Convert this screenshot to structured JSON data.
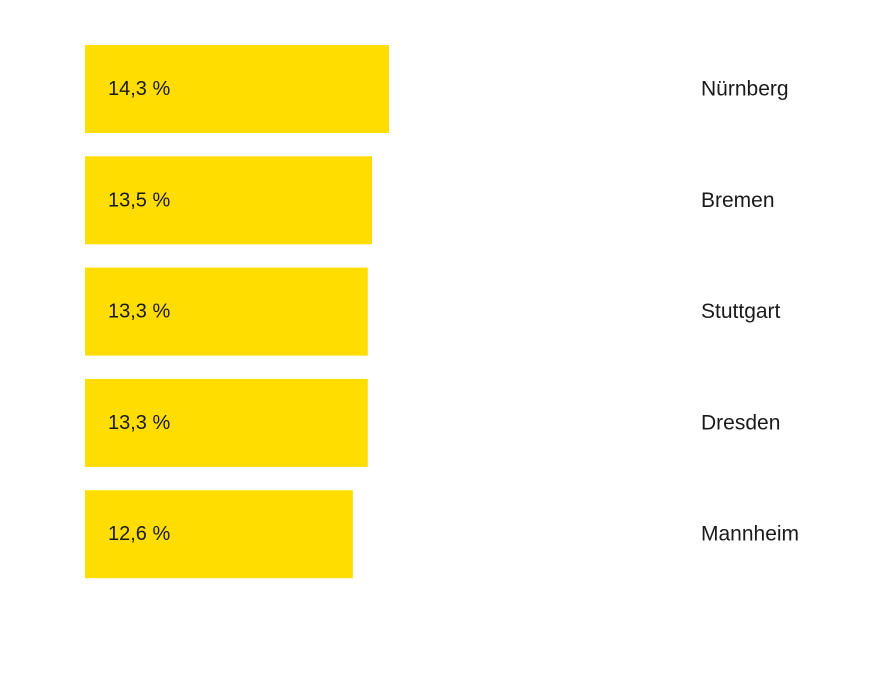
{
  "chart_data": {
    "type": "bar",
    "orientation": "horizontal",
    "categories": [
      "Nürnberg",
      "Bremen",
      "Stuttgart",
      "Dresden",
      "Mannheim"
    ],
    "values": [
      14.3,
      13.5,
      13.3,
      13.3,
      12.6
    ],
    "value_labels": [
      "14,3 %",
      "13,5 %",
      "13,3 %",
      "13,3 %",
      "12,6 %"
    ],
    "unit": "%",
    "title": "",
    "xlabel": "",
    "ylabel": "",
    "grid": false,
    "legend": "none",
    "colors": {
      "bar": "#FFDD00",
      "text": "#1a1a1a",
      "background": "#ffffff"
    }
  }
}
